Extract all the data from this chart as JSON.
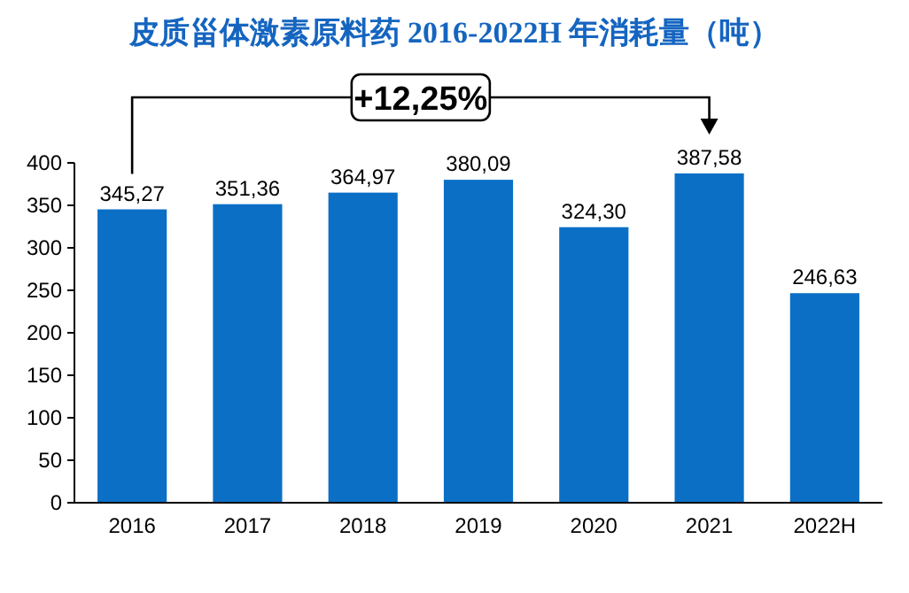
{
  "chart_data": {
    "type": "bar",
    "title": "皮质甾体激素原料药 2016-2022H 年消耗量（吨）",
    "categories": [
      "2016",
      "2017",
      "2018",
      "2019",
      "2020",
      "2021",
      "2022H"
    ],
    "values": [
      345.27,
      351.36,
      364.97,
      380.09,
      324.3,
      387.58,
      246.63
    ],
    "value_labels": [
      "345,27",
      "351,36",
      "364,97",
      "380,09",
      "324,30",
      "387,58",
      "246,63"
    ],
    "color": "#0b6fc6",
    "ylim": [
      0,
      400
    ],
    "yticks": [
      0,
      50,
      100,
      150,
      200,
      250,
      300,
      350,
      400
    ],
    "grid": false,
    "annotations": [
      {
        "text": "+12,25%"
      }
    ]
  }
}
